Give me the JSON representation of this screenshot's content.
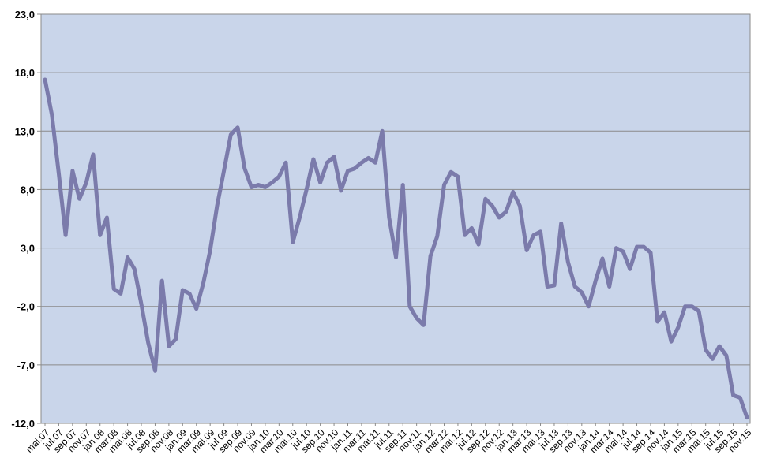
{
  "chart_data": {
    "type": "line",
    "title": "",
    "xlabel": "",
    "ylabel": "",
    "ylim": [
      -12,
      23
    ],
    "yticks": [
      "23,0",
      "18,0",
      "13,0",
      "8,0",
      "3,0",
      "-2,0",
      "-7,0",
      "-12,0"
    ],
    "grid": true,
    "legend": "none",
    "plot_background": "#c9d5ea",
    "line_color": "#7b7bab",
    "xtick_labels": [
      "mai.07",
      "jul.07",
      "sep.07",
      "nov.07",
      "jan.08",
      "mar.08",
      "mai.08",
      "jul.08",
      "sep.08",
      "nov.08",
      "jan.09",
      "mar.09",
      "mai.09",
      "jul.09",
      "sep.09",
      "nov.09",
      "jan.10",
      "mar.10",
      "mai.10",
      "jul.10",
      "sep.10",
      "nov.10",
      "jan.11",
      "mar.11",
      "mai.11",
      "jul.11",
      "sep.11",
      "nov.11",
      "jan.12",
      "mar.12",
      "mai.12",
      "jul.12",
      "sep.12",
      "nov.12",
      "jan.13",
      "mar.13",
      "mai.13",
      "jul.13",
      "sep.13",
      "nov.13",
      "jan.14",
      "mar.14",
      "mai.14",
      "jul.14",
      "sep.14",
      "nov.14",
      "jan.15",
      "mar.15",
      "mai.15",
      "jul.15",
      "sep.15",
      "nov.15"
    ],
    "series": [
      {
        "values": [
          17.4,
          14.4,
          9.4,
          4.1,
          9.6,
          7.2,
          8.6,
          11.0,
          4.1,
          5.6,
          -0.5,
          -0.9,
          2.2,
          1.2,
          -1.8,
          -5.1,
          -7.5,
          0.2,
          -5.4,
          -4.8,
          -0.6,
          -0.9,
          -2.2,
          0.0,
          2.8,
          6.6,
          9.6,
          12.7,
          13.3,
          9.8,
          8.2,
          8.4,
          8.2,
          8.6,
          9.1,
          10.3,
          3.5,
          5.6,
          8.0,
          10.6,
          8.6,
          10.3,
          10.8,
          7.9,
          9.6,
          9.8,
          10.3,
          10.7,
          10.3,
          13.0,
          5.6,
          2.2,
          8.4,
          -2.0,
          -3.0,
          -3.6,
          2.3,
          4.0,
          8.4,
          9.5,
          9.1,
          4.1,
          4.7,
          3.3,
          7.2,
          6.6,
          5.6,
          6.1,
          7.8,
          6.6,
          2.8,
          4.1,
          4.4,
          -0.3,
          -0.2,
          5.1,
          1.8,
          -0.3,
          -0.8,
          -2.0,
          0.2,
          2.1,
          -0.3,
          3.0,
          2.7,
          1.2,
          3.1,
          3.1,
          2.6,
          -3.3,
          -2.5,
          -5.0,
          -3.8,
          -2.0,
          -2.0,
          -2.4,
          -5.7,
          -6.5,
          -5.4,
          -6.2,
          -9.6,
          -9.8,
          -11.5
        ]
      }
    ]
  }
}
